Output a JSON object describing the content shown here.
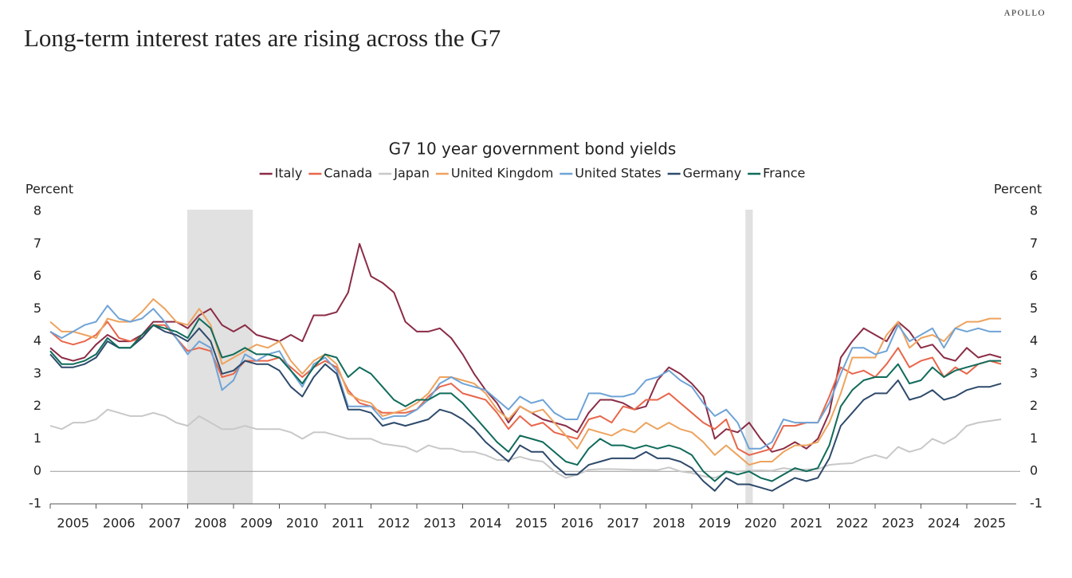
{
  "page": {
    "brand": "APOLLO",
    "headline": "Long-term interest rates are rising across the G7"
  },
  "chart_data": {
    "type": "line",
    "title": "G7 10 year government bond yields",
    "ylabel": "Percent",
    "x": [
      2005,
      2005.25,
      2005.5,
      2005.75,
      2006,
      2006.25,
      2006.5,
      2006.75,
      2007,
      2007.25,
      2007.5,
      2007.75,
      2008,
      2008.25,
      2008.5,
      2008.75,
      2009,
      2009.25,
      2009.5,
      2009.75,
      2010,
      2010.25,
      2010.5,
      2010.75,
      2011,
      2011.25,
      2011.5,
      2011.75,
      2012,
      2012.25,
      2012.5,
      2012.75,
      2013,
      2013.25,
      2013.5,
      2013.75,
      2014,
      2014.25,
      2014.5,
      2014.75,
      2015,
      2015.25,
      2015.5,
      2015.75,
      2016,
      2016.25,
      2016.5,
      2016.75,
      2017,
      2017.25,
      2017.5,
      2017.75,
      2018,
      2018.25,
      2018.5,
      2018.75,
      2019,
      2019.25,
      2019.5,
      2019.75,
      2020,
      2020.25,
      2020.5,
      2020.75,
      2021,
      2021.25,
      2021.5,
      2021.75,
      2022,
      2022.25,
      2022.5,
      2022.75,
      2023,
      2023.25,
      2023.5,
      2023.75,
      2024,
      2024.25,
      2024.5,
      2024.75,
      2025,
      2025.25,
      2025.5,
      2025.75
    ],
    "series": [
      {
        "name": "Italy",
        "color": "#8b2c46",
        "values": [
          3.8,
          3.5,
          3.4,
          3.5,
          3.9,
          4.2,
          4.0,
          4.0,
          4.2,
          4.6,
          4.6,
          4.6,
          4.4,
          4.8,
          5.0,
          4.5,
          4.3,
          4.5,
          4.2,
          4.1,
          4.0,
          4.2,
          4.0,
          4.8,
          4.8,
          4.9,
          5.5,
          7.0,
          6.0,
          5.8,
          5.5,
          4.6,
          4.3,
          4.3,
          4.4,
          4.1,
          3.6,
          3.0,
          2.5,
          2.1,
          1.5,
          2.0,
          1.8,
          1.6,
          1.5,
          1.4,
          1.2,
          1.8,
          2.2,
          2.2,
          2.1,
          1.9,
          2.0,
          2.8,
          3.2,
          3.0,
          2.7,
          2.3,
          1.0,
          1.3,
          1.2,
          1.5,
          1.0,
          0.6,
          0.7,
          0.9,
          0.7,
          1.0,
          1.8,
          3.5,
          4.0,
          4.4,
          4.2,
          4.0,
          4.6,
          4.3,
          3.8,
          3.9,
          3.5,
          3.4,
          3.8,
          3.5,
          3.6,
          3.5
        ]
      },
      {
        "name": "Canada",
        "color": "#e8664a",
        "values": [
          4.3,
          4.0,
          3.9,
          4.0,
          4.2,
          4.6,
          4.1,
          4.0,
          4.1,
          4.5,
          4.5,
          4.1,
          3.7,
          3.8,
          3.7,
          2.9,
          3.0,
          3.4,
          3.4,
          3.4,
          3.5,
          3.2,
          2.9,
          3.2,
          3.4,
          3.2,
          2.5,
          2.1,
          2.0,
          1.8,
          1.8,
          1.8,
          1.9,
          2.3,
          2.6,
          2.7,
          2.4,
          2.3,
          2.2,
          1.8,
          1.3,
          1.7,
          1.4,
          1.5,
          1.2,
          1.1,
          1.0,
          1.6,
          1.7,
          1.5,
          2.0,
          1.9,
          2.2,
          2.2,
          2.4,
          2.1,
          1.8,
          1.5,
          1.3,
          1.6,
          0.7,
          0.5,
          0.6,
          0.7,
          1.4,
          1.4,
          1.5,
          1.5,
          2.3,
          3.2,
          3.0,
          3.1,
          2.9,
          3.3,
          3.8,
          3.2,
          3.4,
          3.5,
          2.9,
          3.2,
          3.0,
          3.3,
          3.4,
          3.3
        ]
      },
      {
        "name": "Japan",
        "color": "#c8c8c8",
        "values": [
          1.4,
          1.3,
          1.5,
          1.5,
          1.6,
          1.9,
          1.8,
          1.7,
          1.7,
          1.8,
          1.7,
          1.5,
          1.4,
          1.7,
          1.5,
          1.3,
          1.3,
          1.4,
          1.3,
          1.3,
          1.3,
          1.2,
          1.0,
          1.2,
          1.2,
          1.1,
          1.0,
          1.0,
          1.0,
          0.85,
          0.8,
          0.75,
          0.6,
          0.8,
          0.7,
          0.7,
          0.6,
          0.6,
          0.5,
          0.35,
          0.35,
          0.45,
          0.35,
          0.3,
          0.0,
          -0.2,
          -0.1,
          0.05,
          0.07,
          0.07,
          0.06,
          0.05,
          0.05,
          0.04,
          0.12,
          0.0,
          -0.05,
          -0.15,
          -0.2,
          -0.05,
          0.0,
          0.02,
          0.03,
          0.02,
          0.1,
          0.05,
          0.06,
          0.07,
          0.2,
          0.23,
          0.25,
          0.4,
          0.5,
          0.4,
          0.75,
          0.6,
          0.7,
          1.0,
          0.85,
          1.05,
          1.4,
          1.5,
          1.55,
          1.6
        ]
      },
      {
        "name": "United Kingdom",
        "color": "#eda35f",
        "values": [
          4.6,
          4.3,
          4.3,
          4.2,
          4.1,
          4.7,
          4.6,
          4.6,
          4.9,
          5.3,
          5.0,
          4.6,
          4.5,
          5.0,
          4.5,
          3.3,
          3.5,
          3.7,
          3.9,
          3.8,
          4.0,
          3.4,
          3.0,
          3.4,
          3.6,
          3.3,
          2.4,
          2.2,
          2.1,
          1.7,
          1.8,
          1.9,
          2.1,
          2.4,
          2.9,
          2.9,
          2.8,
          2.7,
          2.4,
          1.9,
          1.6,
          2.0,
          1.8,
          1.9,
          1.5,
          1.1,
          0.7,
          1.3,
          1.2,
          1.1,
          1.3,
          1.2,
          1.5,
          1.3,
          1.5,
          1.3,
          1.2,
          0.9,
          0.5,
          0.8,
          0.5,
          0.2,
          0.3,
          0.3,
          0.6,
          0.8,
          0.8,
          0.9,
          1.5,
          2.4,
          3.5,
          3.5,
          3.5,
          4.2,
          4.6,
          3.8,
          4.1,
          4.2,
          4.0,
          4.4,
          4.6,
          4.6,
          4.7,
          4.7
        ]
      },
      {
        "name": "United States",
        "color": "#6fa3d6",
        "values": [
          4.3,
          4.1,
          4.3,
          4.5,
          4.6,
          5.1,
          4.7,
          4.6,
          4.7,
          5.0,
          4.6,
          4.1,
          3.6,
          4.0,
          3.8,
          2.5,
          2.8,
          3.6,
          3.4,
          3.6,
          3.7,
          3.1,
          2.6,
          3.3,
          3.5,
          3.1,
          2.0,
          2.0,
          2.0,
          1.6,
          1.7,
          1.7,
          1.9,
          2.2,
          2.7,
          2.9,
          2.7,
          2.6,
          2.5,
          2.2,
          1.9,
          2.3,
          2.1,
          2.2,
          1.8,
          1.6,
          1.6,
          2.4,
          2.4,
          2.3,
          2.3,
          2.4,
          2.8,
          2.9,
          3.1,
          2.8,
          2.6,
          2.1,
          1.7,
          1.9,
          1.5,
          0.7,
          0.7,
          0.9,
          1.6,
          1.5,
          1.5,
          1.5,
          2.1,
          3.0,
          3.8,
          3.8,
          3.6,
          3.7,
          4.5,
          4.0,
          4.2,
          4.4,
          3.8,
          4.4,
          4.3,
          4.4,
          4.3,
          4.3
        ]
      },
      {
        "name": "Germany",
        "color": "#2e4a6b",
        "values": [
          3.6,
          3.2,
          3.2,
          3.3,
          3.5,
          4.0,
          3.8,
          3.8,
          4.1,
          4.5,
          4.3,
          4.2,
          4.0,
          4.4,
          4.0,
          3.0,
          3.1,
          3.4,
          3.3,
          3.3,
          3.1,
          2.6,
          2.3,
          2.9,
          3.3,
          3.0,
          1.9,
          1.9,
          1.8,
          1.4,
          1.5,
          1.4,
          1.5,
          1.6,
          1.9,
          1.8,
          1.6,
          1.3,
          0.9,
          0.6,
          0.3,
          0.8,
          0.6,
          0.6,
          0.2,
          -0.1,
          -0.1,
          0.2,
          0.3,
          0.4,
          0.4,
          0.4,
          0.6,
          0.4,
          0.4,
          0.3,
          0.1,
          -0.3,
          -0.6,
          -0.2,
          -0.4,
          -0.4,
          -0.5,
          -0.6,
          -0.4,
          -0.2,
          -0.3,
          -0.2,
          0.4,
          1.4,
          1.8,
          2.2,
          2.4,
          2.4,
          2.8,
          2.2,
          2.3,
          2.5,
          2.2,
          2.3,
          2.5,
          2.6,
          2.6,
          2.7
        ]
      },
      {
        "name": "France",
        "color": "#0f6b5a",
        "values": [
          3.7,
          3.3,
          3.3,
          3.4,
          3.6,
          4.1,
          3.8,
          3.8,
          4.2,
          4.5,
          4.4,
          4.3,
          4.1,
          4.7,
          4.4,
          3.5,
          3.6,
          3.8,
          3.6,
          3.6,
          3.5,
          3.1,
          2.7,
          3.2,
          3.6,
          3.5,
          2.9,
          3.2,
          3.0,
          2.6,
          2.2,
          2.0,
          2.2,
          2.2,
          2.4,
          2.4,
          2.1,
          1.7,
          1.3,
          0.9,
          0.6,
          1.1,
          1.0,
          0.9,
          0.6,
          0.3,
          0.2,
          0.7,
          1.0,
          0.8,
          0.8,
          0.7,
          0.8,
          0.7,
          0.8,
          0.7,
          0.5,
          0.0,
          -0.3,
          0.0,
          -0.1,
          0.0,
          -0.2,
          -0.3,
          -0.1,
          0.1,
          0.0,
          0.1,
          0.8,
          2.0,
          2.5,
          2.8,
          2.9,
          2.9,
          3.3,
          2.7,
          2.8,
          3.2,
          2.9,
          3.1,
          3.2,
          3.3,
          3.4,
          3.4
        ]
      }
    ],
    "xlim": [
      2005,
      2025.8
    ],
    "xticks": [
      2005,
      2006,
      2007,
      2008,
      2009,
      2010,
      2011,
      2012,
      2013,
      2014,
      2015,
      2016,
      2017,
      2018,
      2019,
      2020,
      2021,
      2022,
      2023,
      2024,
      2025
    ],
    "ylim": [
      -1,
      8
    ],
    "yticks": [
      -1,
      0,
      1,
      2,
      3,
      4,
      5,
      6,
      7,
      8
    ],
    "shading": [
      [
        2007.99,
        2009.42
      ],
      [
        2020.17,
        2020.33
      ]
    ],
    "shading_color": "#e0e1e0"
  }
}
